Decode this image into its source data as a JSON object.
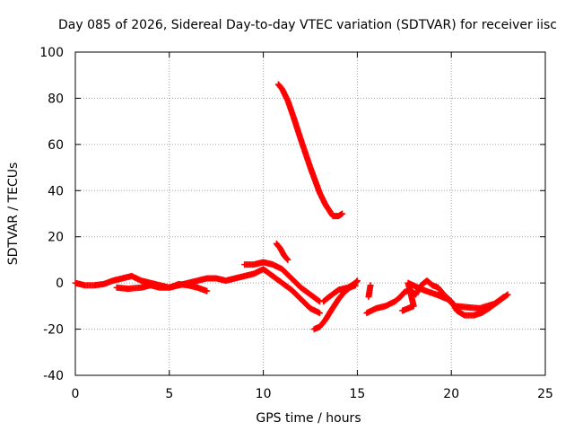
{
  "chart_data": {
    "type": "scatter",
    "title": "Day 085 of 2026, Sidereal Day-to-day VTEC variation (SDTVAR) for receiver iisc",
    "xlabel": "GPS time / hours",
    "ylabel": "SDTVAR / TECUs",
    "xlim": [
      0,
      25
    ],
    "ylim": [
      -40,
      100
    ],
    "xticks": [
      "0",
      "5",
      "10",
      "15",
      "20",
      "25"
    ],
    "yticks": [
      "-40",
      "-20",
      "0",
      "20",
      "40",
      "60",
      "80",
      "100"
    ],
    "grid": true,
    "legend": "none",
    "marker": "plus",
    "color": "#ff0000",
    "series": [
      {
        "segments": [
          [
            [
              0,
              0
            ],
            [
              0.5,
              -1
            ],
            [
              1,
              -1
            ],
            [
              1.5,
              -0.5
            ],
            [
              2,
              1
            ],
            [
              2.5,
              2
            ],
            [
              3,
              3
            ],
            [
              3.5,
              1
            ],
            [
              4,
              0
            ],
            [
              4.5,
              -1
            ],
            [
              5,
              -2
            ],
            [
              5.5,
              -1
            ],
            [
              6,
              0
            ],
            [
              6.5,
              1
            ],
            [
              7,
              2
            ],
            [
              7.5,
              2
            ],
            [
              8,
              1
            ],
            [
              8.5,
              2
            ],
            [
              9,
              3
            ],
            [
              9.5,
              4
            ],
            [
              10,
              6
            ],
            [
              10.5,
              3
            ],
            [
              11,
              0
            ],
            [
              11.5,
              -3
            ],
            [
              12,
              -7
            ],
            [
              12.5,
              -11
            ],
            [
              13,
              -13
            ]
          ],
          [
            [
              2.2,
              -2
            ],
            [
              2.8,
              -2.5
            ],
            [
              3.5,
              -2
            ],
            [
              4,
              -1
            ],
            [
              4.5,
              -2
            ],
            [
              5,
              -2
            ],
            [
              5.5,
              -0.5
            ],
            [
              6,
              -1
            ],
            [
              6.5,
              -2
            ],
            [
              7,
              -3.5
            ]
          ],
          [
            [
              9,
              8
            ],
            [
              9.5,
              8
            ],
            [
              10,
              9
            ],
            [
              10.5,
              8
            ],
            [
              11,
              6
            ],
            [
              11.5,
              2
            ],
            [
              12,
              -2
            ],
            [
              12.5,
              -5
            ],
            [
              13,
              -8
            ]
          ],
          [
            [
              10.8,
              86
            ],
            [
              11,
              84
            ],
            [
              11.3,
              79
            ],
            [
              11.6,
              72
            ],
            [
              12,
              62
            ],
            [
              12.5,
              50
            ],
            [
              13,
              39
            ],
            [
              13.3,
              34
            ],
            [
              13.7,
              29
            ],
            [
              14,
              29
            ],
            [
              14.2,
              30
            ]
          ],
          [
            [
              10.7,
              17
            ],
            [
              10.9,
              15
            ],
            [
              11.1,
              12
            ],
            [
              11.3,
              10
            ]
          ],
          [
            [
              12.7,
              -20
            ],
            [
              13,
              -19
            ],
            [
              13.3,
              -16
            ],
            [
              13.6,
              -12
            ],
            [
              14,
              -7
            ],
            [
              14.3,
              -4
            ],
            [
              14.6,
              -2
            ],
            [
              14.9,
              -1
            ]
          ],
          [
            [
              13.2,
              -8
            ],
            [
              13.5,
              -6
            ],
            [
              14,
              -3
            ],
            [
              14.5,
              -2
            ],
            [
              14.9,
              0
            ],
            [
              15,
              1
            ]
          ],
          [
            [
              15.5,
              -13
            ],
            [
              16,
              -11
            ],
            [
              16.5,
              -10
            ],
            [
              17,
              -8
            ],
            [
              17.3,
              -6
            ],
            [
              17.5,
              -4
            ],
            [
              17.8,
              -3
            ],
            [
              18.1,
              -5
            ],
            [
              18.4,
              -1
            ],
            [
              18.7,
              1
            ],
            [
              19,
              -1
            ],
            [
              19.3,
              -2
            ],
            [
              19.6,
              -5
            ],
            [
              20,
              -8
            ],
            [
              20.3,
              -12
            ],
            [
              20.7,
              -14
            ],
            [
              21.2,
              -14
            ],
            [
              21.6,
              -13
            ],
            [
              22,
              -11
            ],
            [
              22.5,
              -8
            ],
            [
              23,
              -5
            ]
          ],
          [
            [
              15.6,
              -6
            ],
            [
              15.7,
              -1
            ],
            [
              17.4,
              -12
            ],
            [
              18,
              -10
            ],
            [
              17.7,
              0
            ],
            [
              18.5,
              -3
            ],
            [
              19.2,
              -5
            ],
            [
              19.8,
              -7
            ],
            [
              20.2,
              -10
            ],
            [
              21.5,
              -11
            ],
            [
              22.3,
              -9
            ],
            [
              22.8,
              -6
            ]
          ]
        ]
      }
    ]
  }
}
